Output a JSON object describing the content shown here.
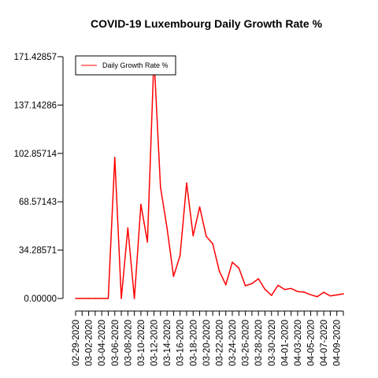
{
  "chart_data": {
    "type": "line",
    "title": "COVID-19 Luxembourg Daily Growth Rate %",
    "xlabel": "",
    "ylabel": "",
    "ylim": [
      0,
      171.42857
    ],
    "y_ticks": [
      "0.00000",
      "34.28571",
      "68.57143",
      "102.85714",
      "137.14286",
      "171.42857"
    ],
    "y_tick_values": [
      0,
      34.28571,
      68.57143,
      102.85714,
      137.14286,
      171.42857
    ],
    "x_tick_labels": [
      "02-29-2020",
      "03-02-2020",
      "03-04-2020",
      "03-06-2020",
      "03-08-2020",
      "03-10-2020",
      "03-12-2020",
      "03-14-2020",
      "03-16-2020",
      "03-18-2020",
      "03-20-2020",
      "03-22-2020",
      "03-24-2020",
      "03-26-2020",
      "03-28-2020",
      "03-30-2020",
      "04-01-2020",
      "04-03-2020",
      "04-05-2020",
      "04-07-2020",
      "04-09-2020"
    ],
    "legend": {
      "position": "top-left",
      "entries": [
        "Daily Growth Rate %"
      ]
    },
    "grid": false,
    "series": [
      {
        "name": "Daily Growth Rate %",
        "color": "#ff0000",
        "x": [
          "02-29-2020",
          "03-01-2020",
          "03-02-2020",
          "03-03-2020",
          "03-04-2020",
          "03-05-2020",
          "03-06-2020",
          "03-07-2020",
          "03-08-2020",
          "03-09-2020",
          "03-10-2020",
          "03-11-2020",
          "03-12-2020",
          "03-13-2020",
          "03-14-2020",
          "03-15-2020",
          "03-16-2020",
          "03-17-2020",
          "03-18-2020",
          "03-19-2020",
          "03-20-2020",
          "03-21-2020",
          "03-22-2020",
          "03-23-2020",
          "03-24-2020",
          "03-25-2020",
          "03-26-2020",
          "03-27-2020",
          "03-28-2020",
          "03-29-2020",
          "03-30-2020",
          "03-31-2020",
          "04-01-2020",
          "04-02-2020",
          "04-03-2020",
          "04-04-2020",
          "04-05-2020",
          "04-06-2020",
          "04-07-2020",
          "04-08-2020",
          "04-09-2020",
          "04-10-2020"
        ],
        "values": [
          0,
          0,
          0,
          0,
          0,
          0,
          100,
          0,
          50,
          0,
          66.67,
          40,
          171.43,
          78.95,
          50,
          15.69,
          30.51,
          81.82,
          44.44,
          64.86,
          44.15,
          38.74,
          19.48,
          9.71,
          25.66,
          21.58,
          8.98,
          10.53,
          13.97,
          6.43,
          2.16,
          9.34,
          6.33,
          7.08,
          4.89,
          4.49,
          2.63,
          1.26,
          4.37,
          1.81,
          2.49,
          3.3
        ]
      }
    ]
  }
}
